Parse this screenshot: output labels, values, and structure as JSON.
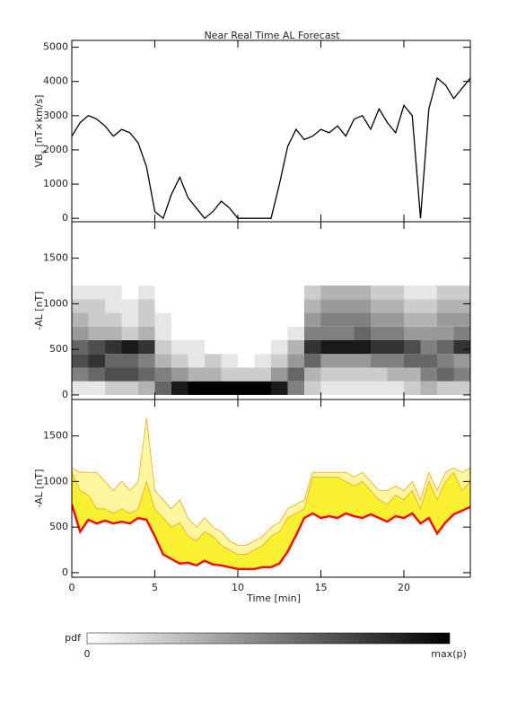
{
  "chart_data": [
    {
      "type": "line",
      "title": "Near Real Time AL Forecast",
      "ylabel_parts": [
        "VB",
        "s",
        " [nT×km/s]"
      ],
      "x": [
        0,
        0.5,
        1,
        1.5,
        2,
        2.5,
        3,
        3.5,
        4,
        4.5,
        5,
        5.5,
        6,
        6.5,
        7,
        7.5,
        8,
        8.5,
        9,
        9.5,
        10,
        10.5,
        11,
        11.5,
        12,
        12.5,
        13,
        13.5,
        14,
        14.5,
        15,
        15.5,
        16,
        16.5,
        17,
        17.5,
        18,
        18.5,
        19,
        19.5,
        20,
        20.5,
        21,
        21.5,
        22,
        22.5,
        23,
        23.5,
        24
      ],
      "values": [
        2400,
        2800,
        3000,
        2900,
        2700,
        2400,
        2600,
        2500,
        2200,
        1500,
        200,
        0,
        700,
        1200,
        600,
        300,
        0,
        200,
        500,
        300,
        0,
        0,
        0,
        0,
        0,
        1000,
        2100,
        2600,
        2300,
        2400,
        2600,
        2500,
        2700,
        2400,
        2900,
        3000,
        2600,
        3200,
        2800,
        2500,
        3300,
        3000,
        0,
        3200,
        4100,
        3900,
        3500,
        3800,
        4100
      ],
      "color": "#000000",
      "xlim": [
        0,
        24
      ],
      "xticks": [
        0,
        5,
        10,
        15,
        20
      ],
      "ylim": [
        -100,
        5200
      ],
      "yticks": [
        0,
        1000,
        2000,
        3000,
        4000,
        5000
      ]
    },
    {
      "type": "heatmap",
      "ylabel": "-AL [nT]",
      "x_edges": [
        0,
        1,
        2,
        3,
        4,
        5,
        6,
        7,
        8,
        9,
        10,
        11,
        12,
        13,
        14,
        15,
        16,
        17,
        18,
        19,
        20,
        21,
        22,
        23,
        24
      ],
      "y_edges": [
        0,
        150,
        300,
        450,
        600,
        750,
        900,
        1050,
        1200
      ],
      "z": [
        [
          0.1,
          0.5,
          0.7,
          0.6,
          0.4,
          0.3,
          0.2,
          0.1
        ],
        [
          0.1,
          0.6,
          0.8,
          0.7,
          0.3,
          0.2,
          0.2,
          0.1
        ],
        [
          0.2,
          0.7,
          0.6,
          0.8,
          0.3,
          0.2,
          0.1,
          0.1
        ],
        [
          0.2,
          0.7,
          0.6,
          0.9,
          0.2,
          0.1,
          0.1,
          0
        ],
        [
          0.3,
          0.6,
          0.5,
          0.8,
          0.3,
          0.2,
          0.2,
          0.1
        ],
        [
          0.6,
          0.5,
          0.3,
          0.2,
          0.1,
          0.1,
          0,
          0
        ],
        [
          0.9,
          0.4,
          0.2,
          0.1,
          0,
          0,
          0,
          0
        ],
        [
          1,
          0.3,
          0.1,
          0.1,
          0,
          0,
          0,
          0
        ],
        [
          1,
          0.3,
          0.2,
          0,
          0,
          0,
          0,
          0
        ],
        [
          1,
          0.2,
          0.1,
          0,
          0,
          0,
          0,
          0
        ],
        [
          1,
          0.2,
          0,
          0,
          0,
          0,
          0,
          0
        ],
        [
          1,
          0.2,
          0.1,
          0,
          0,
          0,
          0,
          0
        ],
        [
          0.9,
          0.4,
          0.2,
          0.1,
          0,
          0,
          0,
          0
        ],
        [
          0.5,
          0.6,
          0.4,
          0.3,
          0.1,
          0,
          0,
          0
        ],
        [
          0.2,
          0.3,
          0.6,
          0.8,
          0.5,
          0.4,
          0.3,
          0.2
        ],
        [
          0.1,
          0.2,
          0.4,
          0.9,
          0.5,
          0.5,
          0.4,
          0.3
        ],
        [
          0.1,
          0.2,
          0.4,
          0.9,
          0.5,
          0.5,
          0.4,
          0.3
        ],
        [
          0.1,
          0.2,
          0.4,
          0.9,
          0.6,
          0.5,
          0.4,
          0.3
        ],
        [
          0.1,
          0.2,
          0.5,
          0.8,
          0.5,
          0.4,
          0.3,
          0.2
        ],
        [
          0.1,
          0.3,
          0.5,
          0.8,
          0.5,
          0.4,
          0.3,
          0.2
        ],
        [
          0.2,
          0.3,
          0.6,
          0.7,
          0.4,
          0.3,
          0.2,
          0.1
        ],
        [
          0.3,
          0.5,
          0.6,
          0.5,
          0.4,
          0.3,
          0.2,
          0.1
        ],
        [
          0.2,
          0.6,
          0.5,
          0.6,
          0.4,
          0.4,
          0.3,
          0.2
        ],
        [
          0.2,
          0.5,
          0.4,
          0.8,
          0.5,
          0.4,
          0.3,
          0.2
        ]
      ],
      "colormap": [
        "#ffffff",
        "#000000"
      ],
      "colorbar": {
        "label": "pdf",
        "min_label": "0",
        "max_label": "max(p)"
      },
      "xlim": [
        0,
        24
      ],
      "xticks": [
        0,
        5,
        10,
        15,
        20
      ],
      "ylim": [
        -50,
        1900
      ],
      "yticks": [
        0,
        500,
        1000,
        1500
      ]
    },
    {
      "type": "band",
      "ylabel": "-AL [nT]",
      "xlabel": "Time [min]",
      "x": [
        0,
        0.5,
        1,
        1.5,
        2,
        2.5,
        3,
        3.5,
        4,
        4.5,
        5,
        5.5,
        6,
        6.5,
        7,
        7.5,
        8,
        8.5,
        9,
        9.5,
        10,
        10.5,
        11,
        11.5,
        12,
        12.5,
        13,
        13.5,
        14,
        14.5,
        15,
        15.5,
        16,
        16.5,
        17,
        17.5,
        18,
        18.5,
        19,
        19.5,
        20,
        20.5,
        21,
        21.5,
        22,
        22.5,
        23,
        23.5,
        24
      ],
      "series": [
        {
          "color": "#fff7a0",
          "line_color": "#f5a623",
          "values": [
            1150,
            1100,
            1100,
            1100,
            1000,
            900,
            1000,
            900,
            1000,
            1700,
            900,
            800,
            700,
            800,
            600,
            500,
            600,
            500,
            450,
            350,
            300,
            300,
            350,
            400,
            500,
            550,
            700,
            750,
            800,
            1100,
            1100,
            1100,
            1100,
            1100,
            1050,
            1100,
            1000,
            900,
            900,
            950,
            900,
            1000,
            800,
            1100,
            900,
            1100,
            1150,
            1100,
            1150
          ]
        },
        {
          "color": "#f8f030",
          "line_color": "#f5a623",
          "values": [
            1100,
            900,
            850,
            700,
            700,
            650,
            700,
            650,
            700,
            1000,
            700,
            600,
            500,
            550,
            400,
            350,
            450,
            400,
            300,
            250,
            200,
            200,
            250,
            300,
            400,
            450,
            600,
            650,
            700,
            1050,
            1050,
            1050,
            1050,
            1000,
            950,
            1000,
            900,
            800,
            750,
            850,
            800,
            900,
            700,
            1000,
            800,
            1000,
            1100,
            900,
            1000
          ]
        },
        {
          "color": "#ee1111",
          "values": [
            750,
            450,
            580,
            540,
            570,
            540,
            560,
            540,
            600,
            580,
            400,
            200,
            150,
            100,
            110,
            80,
            130,
            90,
            80,
            60,
            40,
            40,
            40,
            60,
            60,
            100,
            230,
            410,
            600,
            650,
            600,
            620,
            600,
            650,
            620,
            600,
            640,
            600,
            560,
            620,
            600,
            650,
            540,
            600,
            430,
            550,
            640,
            680,
            720
          ]
        }
      ],
      "xlim": [
        0,
        24
      ],
      "xticks": [
        0,
        5,
        10,
        15,
        20
      ],
      "ylim": [
        -50,
        1900
      ],
      "yticks": [
        0,
        500,
        1000,
        1500
      ]
    }
  ]
}
